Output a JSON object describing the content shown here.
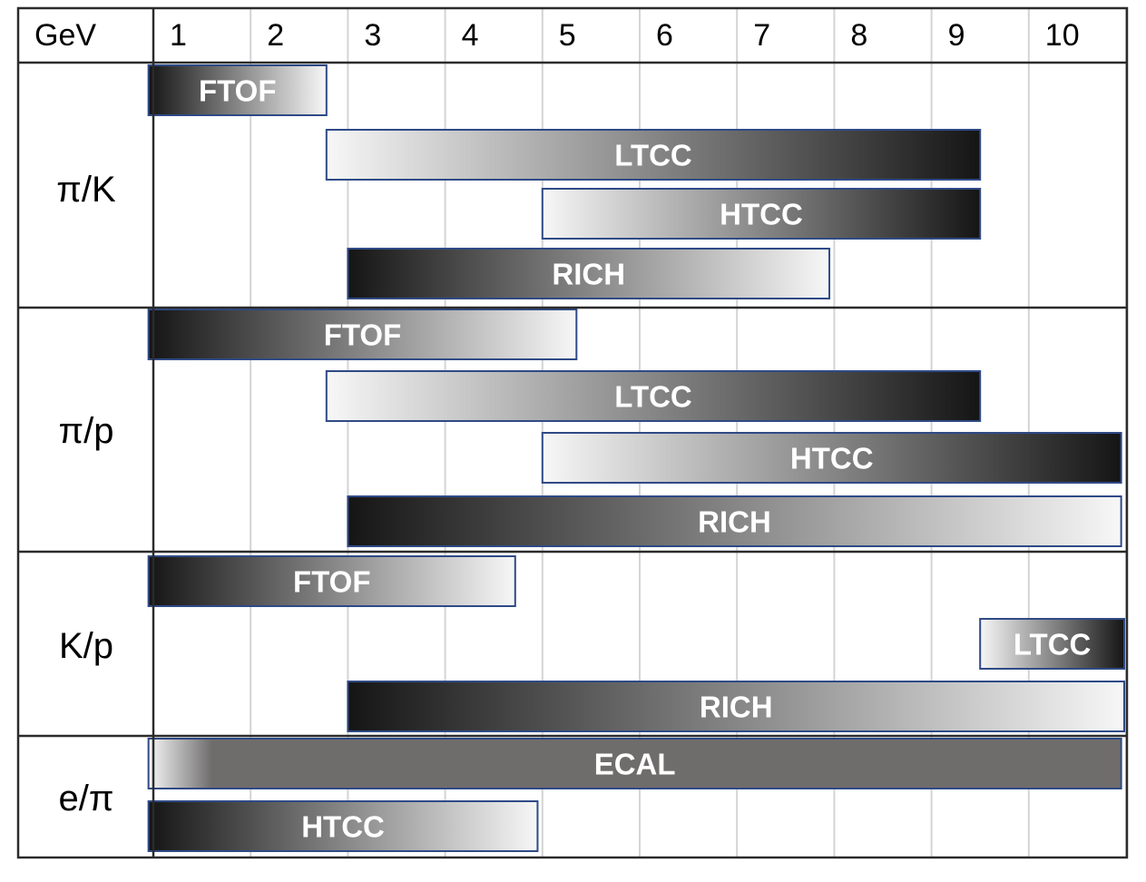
{
  "header": {
    "unit_label": "GeV",
    "ticks": [
      "1",
      "2",
      "3",
      "4",
      "5",
      "6",
      "7",
      "8",
      "9",
      "10"
    ]
  },
  "colors": {
    "border": "#2b2b2b",
    "grid": "#d4d4d4",
    "bar_outline": "#2f4a86",
    "dark": "#151515",
    "light": "#f7f7f7",
    "ecal_gray": "#6f6c6c"
  },
  "groups": [
    {
      "label": "π/K",
      "bars": [
        {
          "name": "FTOF",
          "start": 0.95,
          "end": 2.78,
          "gradient": "dark-to-light"
        },
        {
          "name": "LTCC",
          "start": 2.78,
          "end": 9.5,
          "gradient": "light-to-dark"
        },
        {
          "name": "HTCC",
          "start": 5.0,
          "end": 9.5,
          "gradient": "light-to-dark"
        },
        {
          "name": "RICH",
          "start": 3.0,
          "end": 7.95,
          "gradient": "dark-to-light"
        }
      ]
    },
    {
      "label": "π/p",
      "bars": [
        {
          "name": "FTOF",
          "start": 0.95,
          "end": 5.35,
          "gradient": "dark-to-light"
        },
        {
          "name": "LTCC",
          "start": 2.78,
          "end": 9.5,
          "gradient": "light-to-dark"
        },
        {
          "name": "HTCC",
          "start": 5.0,
          "end": 10.95,
          "gradient": "light-to-dark"
        },
        {
          "name": "RICH",
          "start": 3.0,
          "end": 10.95,
          "gradient": "dark-to-light"
        }
      ]
    },
    {
      "label": "K/p",
      "bars": [
        {
          "name": "FTOF",
          "start": 0.95,
          "end": 4.72,
          "gradient": "dark-to-light"
        },
        {
          "name": "LTCC",
          "start": 9.5,
          "end": 11.0,
          "gradient": "light-to-dark"
        },
        {
          "name": "RICH",
          "start": 3.0,
          "end": 11.0,
          "gradient": "dark-to-light"
        }
      ]
    },
    {
      "label": "e/π",
      "bars": [
        {
          "name": "ECAL",
          "start": 0.95,
          "end": 10.95,
          "gradient": "ecal"
        },
        {
          "name": "HTCC",
          "start": 0.95,
          "end": 4.95,
          "gradient": "dark-to-light"
        }
      ]
    }
  ]
}
